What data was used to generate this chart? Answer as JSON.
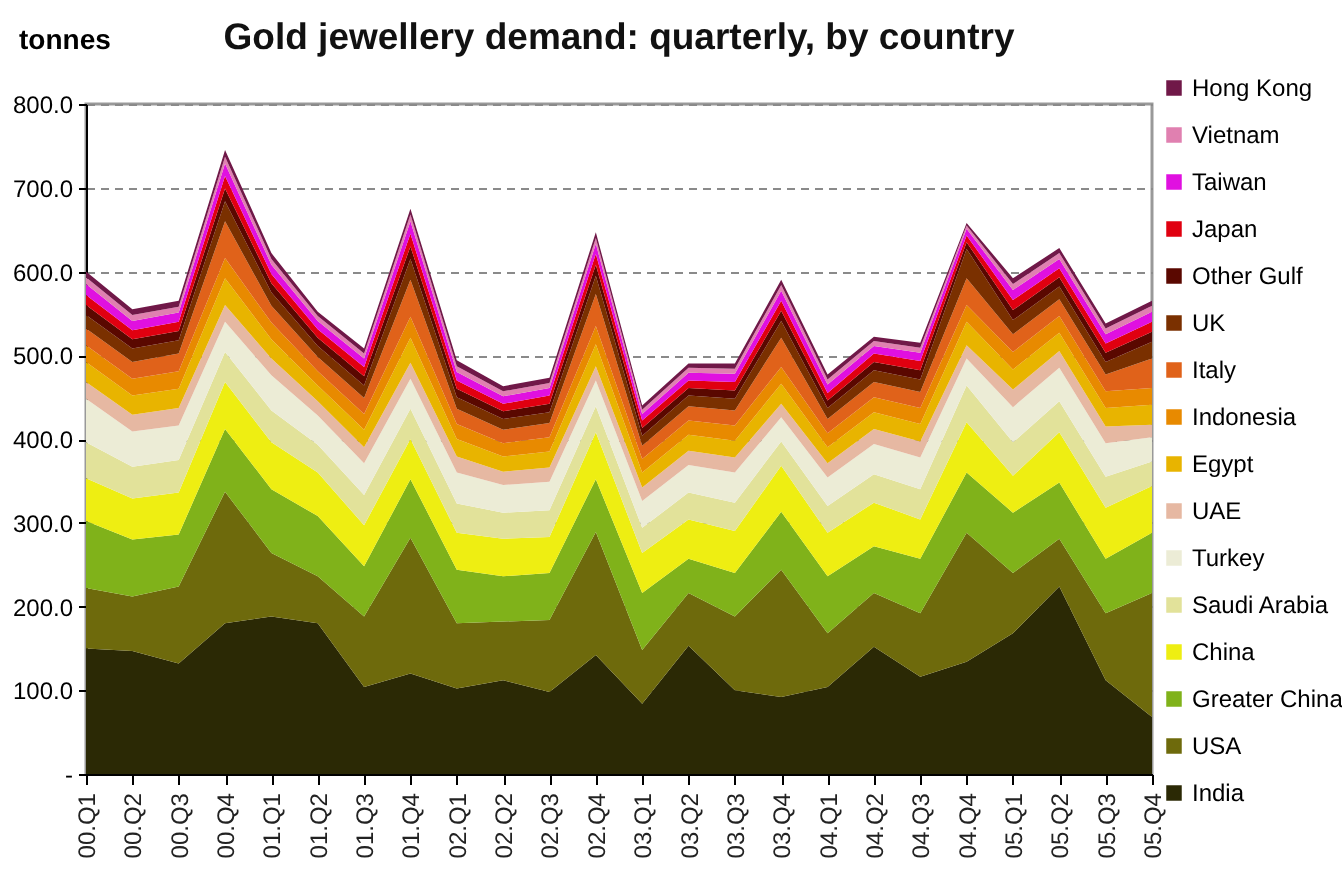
{
  "chart_data": {
    "type": "area",
    "title": "Gold jewellery demand:  quarterly, by country",
    "ylabel": "tonnes",
    "stacked": true,
    "legend": "right",
    "grid": "y",
    "categories": [
      "00.Q1",
      "00.Q2",
      "00.Q3",
      "00.Q4",
      "01.Q1",
      "01.Q2",
      "01.Q3",
      "01.Q4",
      "02.Q1",
      "02.Q2",
      "02.Q3",
      "02.Q4",
      "03.Q1",
      "03.Q2",
      "03.Q3",
      "03.Q4",
      "04.Q1",
      "04.Q2",
      "04.Q3",
      "04.Q4",
      "05.Q1",
      "05.Q2",
      "05.Q3",
      "05.Q4"
    ],
    "ylim": [
      0,
      800
    ],
    "yticks": [
      {
        "value": 0,
        "label": "-"
      },
      {
        "value": 100,
        "label": "100.0"
      },
      {
        "value": 200,
        "label": "200.0"
      },
      {
        "value": 300,
        "label": "300.0"
      },
      {
        "value": 400,
        "label": "400.0"
      },
      {
        "value": 500,
        "label": "500.0"
      },
      {
        "value": 600,
        "label": "600.0"
      },
      {
        "value": 700,
        "label": "700.0"
      },
      {
        "value": 800,
        "label": "800.0"
      }
    ],
    "series": [
      {
        "name": "India",
        "color": "#2b2905",
        "values": [
          150,
          147,
          132,
          180,
          188,
          180,
          104,
          120,
          102,
          112,
          98,
          142,
          84,
          153,
          100,
          92,
          104,
          152,
          116,
          134,
          168,
          224,
          112,
          68
        ]
      },
      {
        "name": "USA",
        "color": "#6e6a0c",
        "values": [
          72,
          65,
          92,
          157,
          76,
          56,
          84,
          162,
          78,
          70,
          86,
          147,
          64,
          63,
          88,
          152,
          64,
          64,
          76,
          154,
          72,
          57,
          80,
          148
        ]
      },
      {
        "name": "Greater China",
        "color": "#80b21a",
        "values": [
          80,
          68,
          62,
          75,
          76,
          72,
          60,
          70,
          64,
          54,
          56,
          63,
          68,
          41,
          52,
          69,
          68,
          56,
          65,
          72,
          72,
          67,
          65,
          72
        ]
      },
      {
        "name": "China",
        "color": "#eeee12",
        "values": [
          51,
          49,
          50,
          56,
          56,
          52,
          49,
          48,
          44,
          45,
          43,
          56,
          48,
          47,
          50,
          55,
          52,
          52,
          47,
          60,
          44,
          60,
          61,
          56
        ]
      },
      {
        "name": "Saudi Arabia",
        "color": "#e2e29a",
        "values": [
          43,
          38,
          39,
          36,
          38,
          33,
          36,
          36,
          35,
          31,
          32,
          31,
          30,
          32,
          34,
          29,
          32,
          34,
          36,
          44,
          40,
          37,
          37,
          29
        ]
      },
      {
        "name": "Turkey",
        "color": "#ececd6",
        "values": [
          52,
          42,
          41,
          36,
          42,
          35,
          38,
          36,
          37,
          33,
          34,
          31,
          32,
          33,
          36,
          29,
          34,
          36,
          38,
          32,
          42,
          40,
          40,
          29
        ]
      },
      {
        "name": "UAE",
        "color": "#e6b8a2",
        "values": [
          20,
          20,
          21,
          20,
          20,
          17,
          19,
          19,
          19,
          16,
          17,
          17,
          16,
          17,
          18,
          16,
          17,
          18,
          19,
          16,
          21,
          20,
          20,
          15
        ]
      },
      {
        "name": "Egypt",
        "color": "#e8b400",
        "values": [
          24,
          23,
          23,
          32,
          23,
          19,
          21,
          30,
          21,
          18,
          19,
          26,
          18,
          19,
          20,
          24,
          19,
          20,
          21,
          28,
          24,
          22,
          22,
          24
        ]
      },
      {
        "name": "Indonesia",
        "color": "#e88a00",
        "values": [
          20,
          20,
          21,
          24,
          20,
          17,
          19,
          25,
          18,
          16,
          17,
          22,
          16,
          17,
          18,
          20,
          17,
          18,
          19,
          20,
          21,
          20,
          20,
          20
        ]
      },
      {
        "name": "Italy",
        "color": "#e0621a",
        "values": [
          20,
          20,
          21,
          44,
          20,
          17,
          19,
          44,
          18,
          16,
          17,
          38,
          16,
          17,
          18,
          35,
          17,
          18,
          19,
          32,
          21,
          20,
          20,
          35
        ]
      },
      {
        "name": "UK",
        "color": "#7a3000",
        "values": [
          16,
          16,
          16,
          24,
          16,
          13,
          15,
          25,
          14,
          13,
          13,
          22,
          12,
          13,
          14,
          20,
          13,
          14,
          15,
          35,
          17,
          15,
          15,
          20
        ]
      },
      {
        "name": "Other Gulf",
        "color": "#5a0800",
        "values": [
          12,
          11,
          11,
          15,
          11,
          10,
          11,
          15,
          10,
          9,
          10,
          13,
          9,
          9,
          10,
          12,
          9,
          10,
          11,
          8,
          12,
          11,
          11,
          12
        ]
      },
      {
        "name": "Japan",
        "color": "#e00010",
        "values": [
          12,
          11,
          11,
          15,
          11,
          10,
          11,
          15,
          10,
          9,
          10,
          13,
          9,
          9,
          10,
          12,
          9,
          10,
          11,
          8,
          12,
          11,
          11,
          12
        ]
      },
      {
        "name": "Taiwan",
        "color": "#e010e0",
        "values": [
          13,
          11,
          11,
          15,
          11,
          10,
          10,
          15,
          10,
          9,
          9,
          12,
          8,
          9,
          10,
          12,
          10,
          9,
          10,
          8,
          12,
          11,
          11,
          12
        ]
      },
      {
        "name": "Vietnam",
        "color": "#e080b0",
        "values": [
          8,
          7,
          7,
          8,
          7,
          6,
          6,
          8,
          7,
          6,
          6,
          7,
          5,
          6,
          6,
          7,
          6,
          6,
          6,
          4,
          7,
          7,
          7,
          7
        ]
      },
      {
        "name": "Hong Kong",
        "color": "#701848",
        "values": [
          7,
          7,
          7,
          8,
          7,
          5,
          6,
          7,
          7,
          6,
          6,
          7,
          5,
          5,
          6,
          6,
          6,
          5,
          6,
          3,
          7,
          6,
          6,
          6
        ]
      }
    ]
  }
}
